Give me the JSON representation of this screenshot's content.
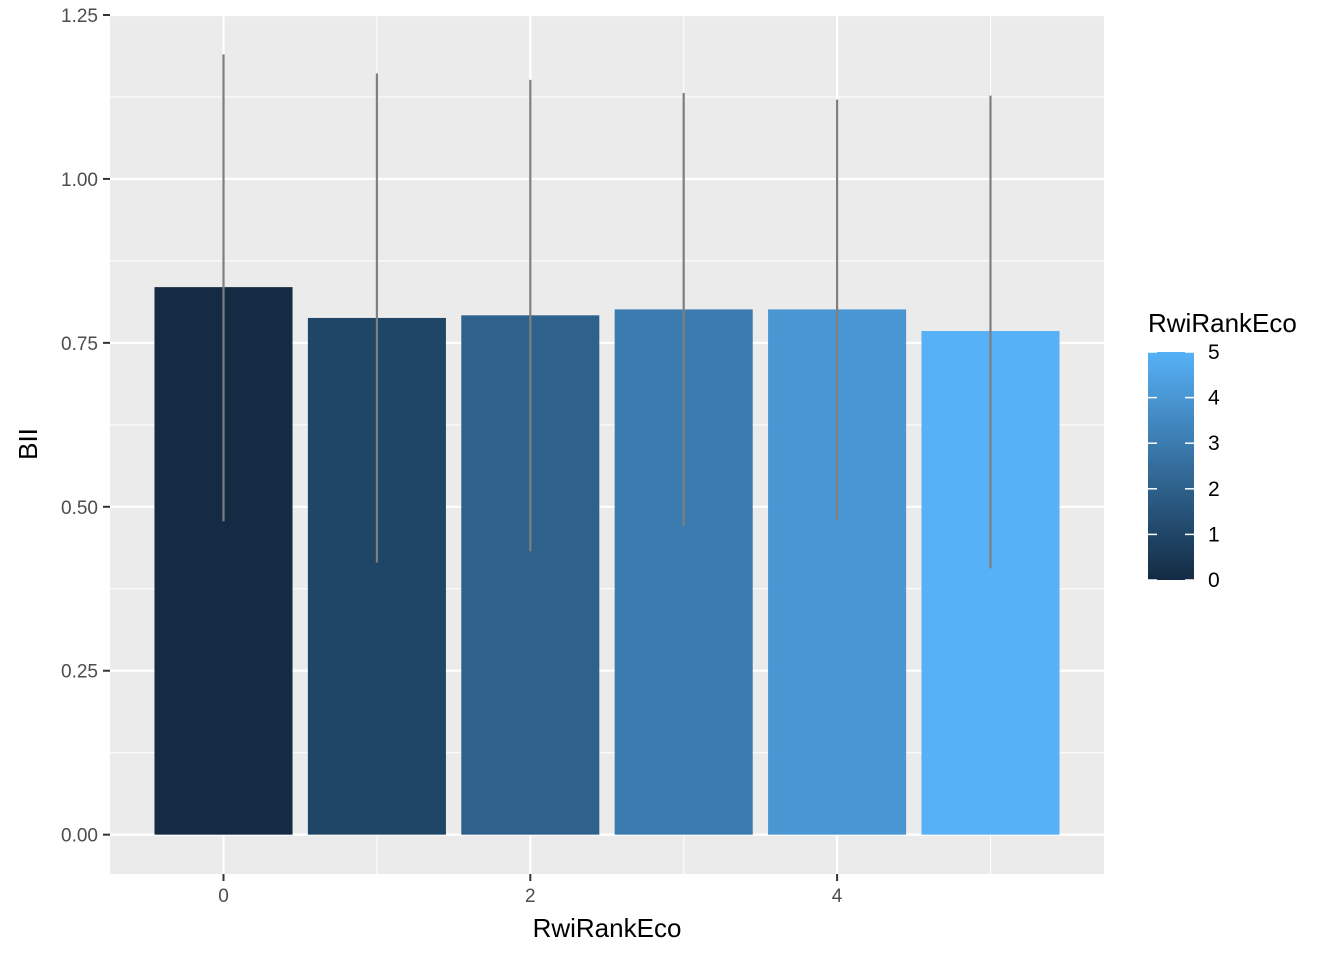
{
  "chart_data": {
    "type": "bar",
    "title": "",
    "xlabel": "RwiRankEco",
    "ylabel": "BII",
    "x": [
      0,
      1,
      2,
      3,
      4,
      5
    ],
    "values": [
      0.835,
      0.788,
      0.792,
      0.801,
      0.801,
      0.768
    ],
    "error_low": [
      0.478,
      0.415,
      0.432,
      0.471,
      0.48,
      0.406
    ],
    "error_high": [
      1.19,
      1.161,
      1.151,
      1.131,
      1.121,
      1.127
    ],
    "xlim": [
      -0.74,
      5.74
    ],
    "ylim": [
      -0.06,
      1.25
    ],
    "x_ticks": [
      0,
      2,
      4
    ],
    "x_tick_labels": [
      "0",
      "2",
      "4"
    ],
    "y_ticks": [
      0,
      0.25,
      0.5,
      0.75,
      1.0,
      1.25
    ],
    "y_tick_labels": [
      "0.00",
      "0.25",
      "0.50",
      "0.75",
      "1.00",
      "1.25"
    ],
    "grid": true,
    "panel_background": "#ebebeb",
    "gridline_color": "#ffffff",
    "errorbar_color": "#7f7f7f",
    "color_scale": {
      "low": "#132b43",
      "high": "#56b1f7",
      "min": 0,
      "max": 5
    },
    "legend": {
      "title": "RwiRankEco",
      "placement": "right",
      "breaks": [
        0,
        1,
        2,
        3,
        4,
        5
      ],
      "labels": [
        "0",
        "1",
        "2",
        "3",
        "4",
        "5"
      ]
    }
  }
}
